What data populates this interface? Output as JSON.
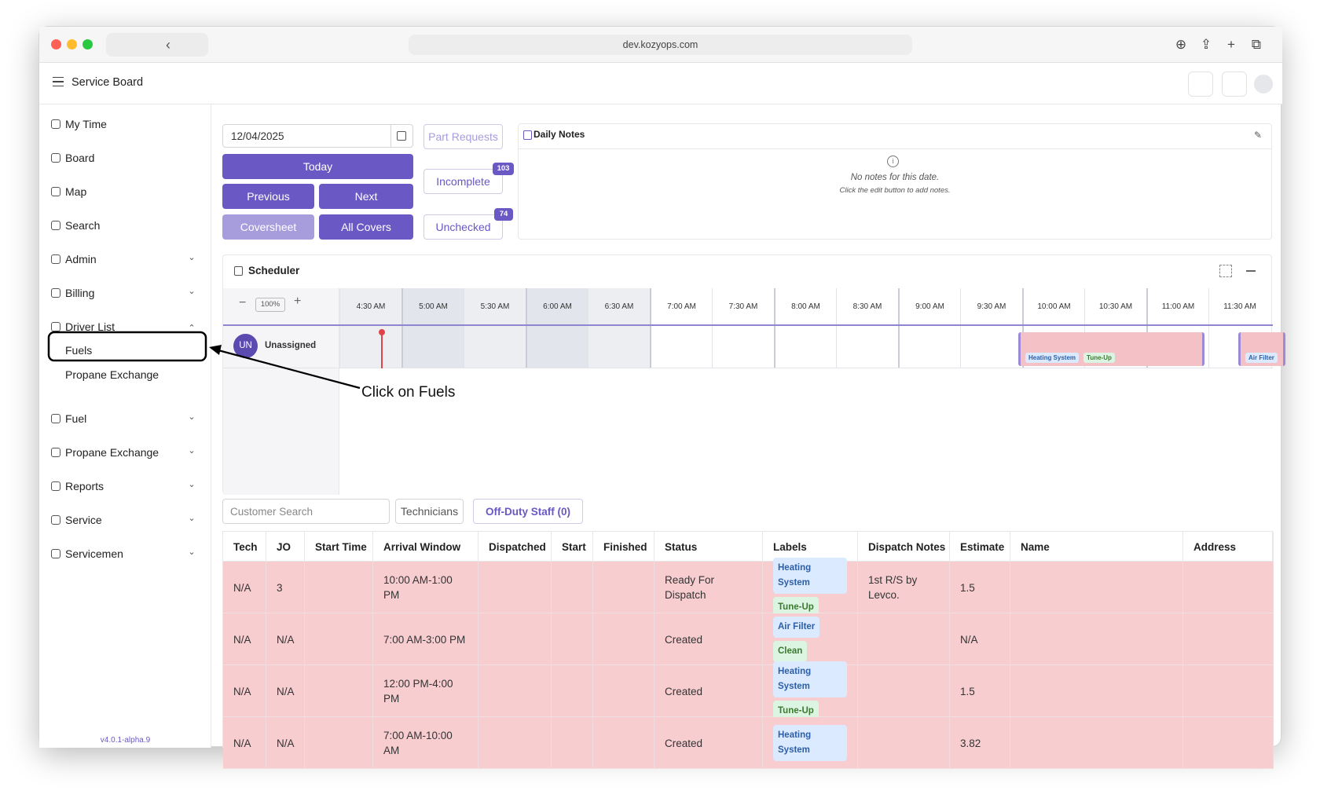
{
  "browser": {
    "url": "dev.kozyops.com"
  },
  "header": {
    "title": "Service Board"
  },
  "sidebar": {
    "items": [
      {
        "label": "My Time"
      },
      {
        "label": "Board"
      },
      {
        "label": "Map"
      },
      {
        "label": "Search"
      },
      {
        "label": "Admin",
        "chevron": "down"
      },
      {
        "label": "Billing",
        "chevron": "down"
      },
      {
        "label": "Driver List",
        "chevron": "up",
        "children": [
          "Fuels",
          "Propane Exchange"
        ]
      },
      {
        "label": "Fuel",
        "chevron": "down"
      },
      {
        "label": "Propane Exchange",
        "chevron": "down"
      },
      {
        "label": "Reports",
        "chevron": "down"
      },
      {
        "label": "Service",
        "chevron": "down"
      },
      {
        "label": "Servicemen",
        "chevron": "down"
      }
    ],
    "version": "v4.0.1-alpha.9"
  },
  "controls": {
    "date": "12/04/2025",
    "today": "Today",
    "previous": "Previous",
    "next": "Next",
    "coversheet": "Coversheet",
    "all_covers": "All Covers",
    "part_requests": "Part Requests",
    "incomplete": {
      "label": "Incomplete",
      "badge": "103"
    },
    "unchecked": {
      "label": "Unchecked",
      "badge": "74"
    }
  },
  "daily_notes": {
    "title": "Daily Notes",
    "empty": "No notes for this date.",
    "hint": "Click the edit button to add notes."
  },
  "scheduler": {
    "title": "Scheduler",
    "zoom": "100%",
    "times": [
      "4:30 AM",
      "5:00 AM",
      "5:30 AM",
      "6:00 AM",
      "6:30 AM",
      "7:00 AM",
      "7:30 AM",
      "8:00 AM",
      "8:30 AM",
      "9:00 AM",
      "9:30 AM",
      "10:00 AM",
      "10:30 AM",
      "11:00 AM",
      "11:30 AM"
    ],
    "rows": [
      {
        "initials": "UN",
        "name": "Unassigned"
      }
    ],
    "events": [
      {
        "labels": [
          "Heating System",
          "Tune-Up"
        ]
      },
      {
        "labels": [
          "Air Filter"
        ]
      }
    ]
  },
  "annotation": {
    "text": "Click on Fuels"
  },
  "filters": {
    "customer_search": "Customer Search",
    "technicians": "Technicians",
    "off_duty": "Off-Duty Staff (0)"
  },
  "table": {
    "columns": [
      "Tech",
      "JO",
      "Start Time",
      "Arrival Window",
      "Dispatched",
      "Start",
      "Finished",
      "Status",
      "Labels",
      "Dispatch Notes",
      "Estimate",
      "Name",
      "Address"
    ],
    "rows": [
      {
        "tech": "N/A",
        "jo": "3",
        "arrival": "10:00 AM-1:00 PM",
        "status": "Ready For Dispatch",
        "labels": [
          "Heating System",
          "Tune-Up"
        ],
        "notes": "1st R/S by Levco.",
        "estimate": "1.5"
      },
      {
        "tech": "N/A",
        "jo": "N/A",
        "arrival": "7:00 AM-3:00 PM",
        "status": "Created",
        "labels": [
          "Air Filter",
          "Clean"
        ],
        "estimate": "N/A"
      },
      {
        "tech": "N/A",
        "jo": "N/A",
        "arrival": "12:00 PM-4:00 PM",
        "status": "Created",
        "labels": [
          "Heating System",
          "Tune-Up"
        ],
        "estimate": "1.5"
      },
      {
        "tech": "N/A",
        "jo": "N/A",
        "arrival": "7:00 AM-10:00 AM",
        "status": "Created",
        "labels": [
          "Heating System"
        ],
        "estimate": "3.82"
      }
    ]
  }
}
